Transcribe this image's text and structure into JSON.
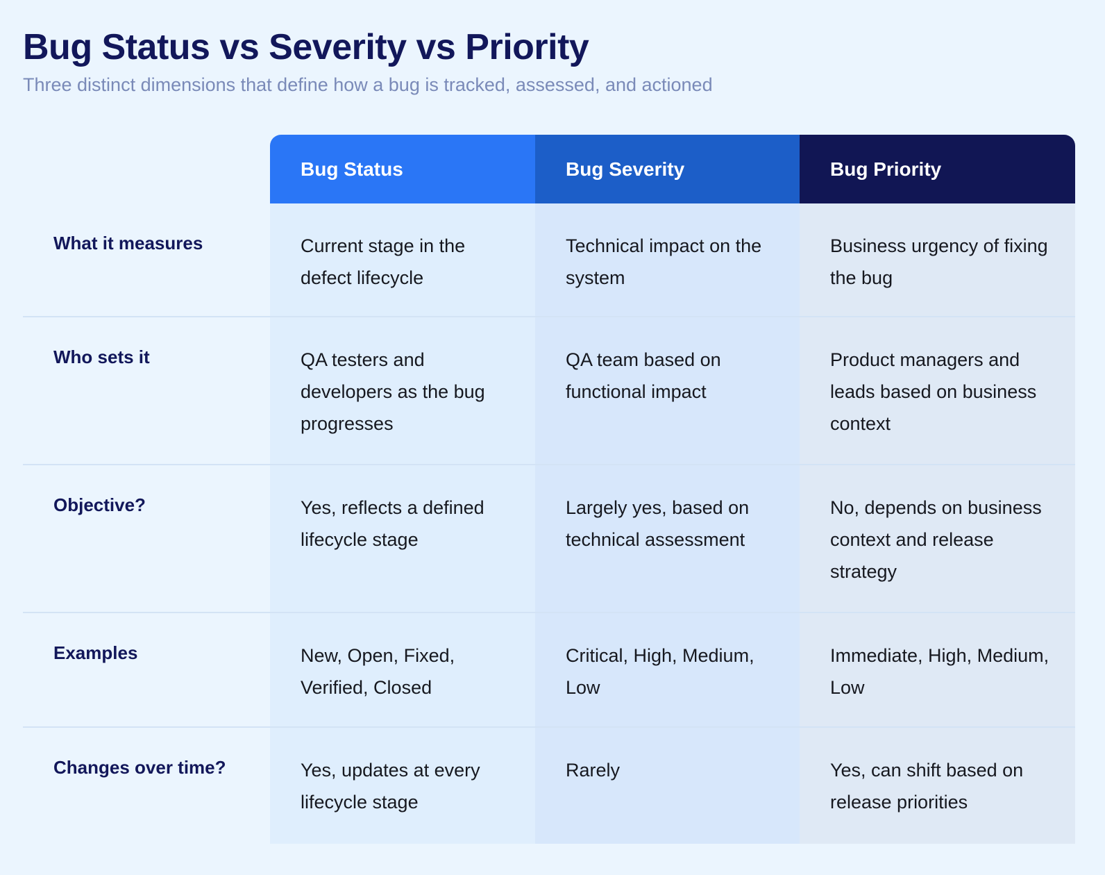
{
  "header": {
    "title": "Bug Status vs Severity vs Priority",
    "subtitle": "Three distinct dimensions that define how a bug is tracked, assessed, and actioned"
  },
  "table": {
    "columns": [
      {
        "label": "Bug Status",
        "color": "#2A76F6"
      },
      {
        "label": "Bug Severity",
        "color": "#1C5EC8"
      },
      {
        "label": "Bug Priority",
        "color": "#111654"
      }
    ],
    "rows": [
      {
        "label": "What it measures",
        "cells": [
          "Current stage in the defect lifecycle",
          "Technical impact on the system",
          "Business urgency of fixing the bug"
        ]
      },
      {
        "label": "Who sets it",
        "cells": [
          "QA testers and developers as the bug progresses",
          "QA team based on functional impact",
          "Product managers and leads based on business context"
        ]
      },
      {
        "label": "Objective?",
        "cells": [
          "Yes, reflects a defined lifecycle stage",
          "Largely yes, based on technical assessment",
          "No, depends on business context and release strategy"
        ]
      },
      {
        "label": "Examples",
        "cells": [
          "New, Open, Fixed, Verified, Closed",
          "Critical, High, Medium, Low",
          "Immediate, High, Medium, Low"
        ]
      },
      {
        "label": "Changes over time?",
        "cells": [
          "Yes, updates at every lifecycle stage",
          "Rarely",
          "Yes, can shift based on release priorities"
        ]
      }
    ]
  },
  "colors": {
    "background": "#EBF5FE",
    "title": "#12175A",
    "subtitle": "#7A8AB8",
    "status_header": "#2A76F6",
    "severity_header": "#1C5EC8",
    "priority_header": "#111654"
  }
}
